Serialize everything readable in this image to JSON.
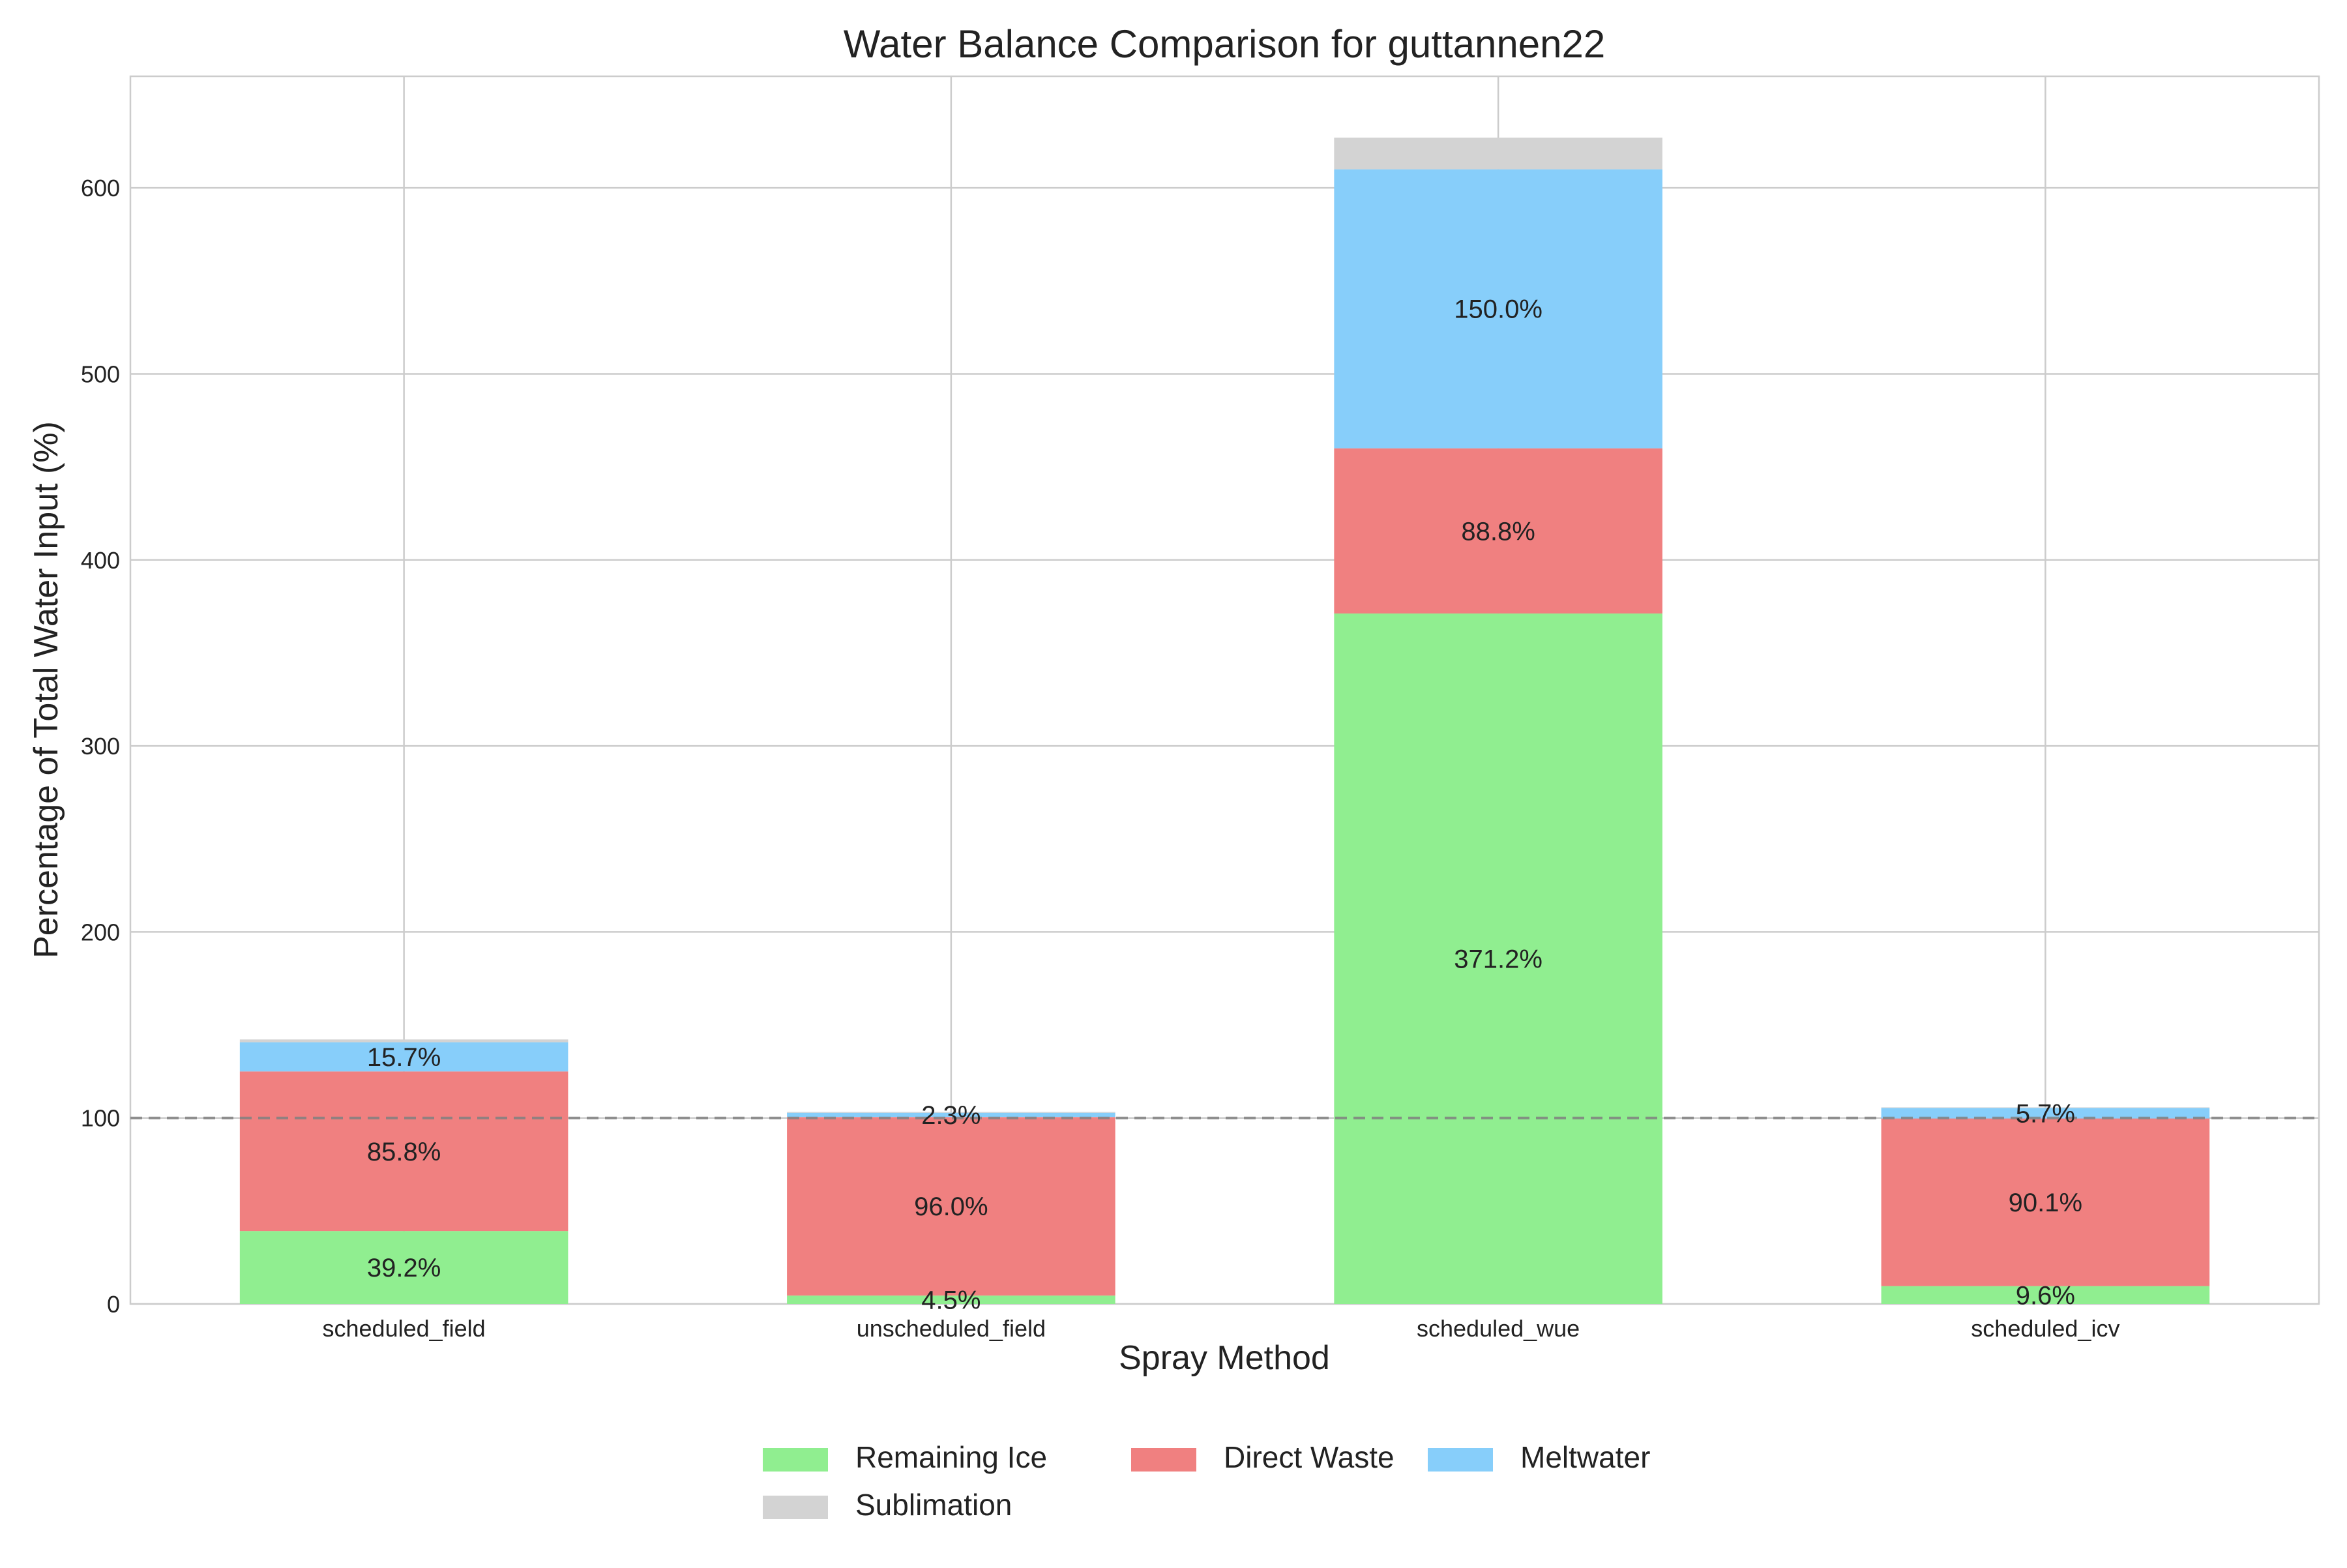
{
  "chart_data": {
    "type": "bar",
    "stacked": true,
    "title": "Water Balance Comparison for guttannen22",
    "xlabel": "Spray Method",
    "ylabel": "Percentage of Total Water Input (%)",
    "categories": [
      "scheduled_field",
      "unscheduled_field",
      "scheduled_wue",
      "scheduled_icv"
    ],
    "ylim": [
      0,
      660
    ],
    "yticks": [
      0,
      100,
      200,
      300,
      400,
      500,
      600
    ],
    "grid": true,
    "reference_line": {
      "y": 100,
      "style": "dashed",
      "color": "#808080"
    },
    "legend_position": "bottom-center",
    "series": [
      {
        "name": "Remaining Ice",
        "color": "#90ee90",
        "values": [
          39.2,
          4.5,
          371.2,
          9.6
        ],
        "labels": [
          "39.2%",
          "4.5%",
          "371.2%",
          "9.6%"
        ]
      },
      {
        "name": "Direct Waste",
        "color": "#f08080",
        "values": [
          85.8,
          96.0,
          88.8,
          90.1
        ],
        "labels": [
          "85.8%",
          "96.0%",
          "88.8%",
          "90.1%"
        ]
      },
      {
        "name": "Meltwater",
        "color": "#87cefa",
        "values": [
          15.7,
          2.3,
          150.0,
          5.7
        ],
        "labels": [
          "15.7%",
          "2.3%",
          "150.0%",
          "5.7%"
        ]
      },
      {
        "name": "Sublimation",
        "color": "#d3d3d3",
        "values": [
          1.5,
          0.4,
          17.0,
          0.3
        ],
        "labels": [
          "",
          "",
          "",
          ""
        ]
      }
    ]
  }
}
